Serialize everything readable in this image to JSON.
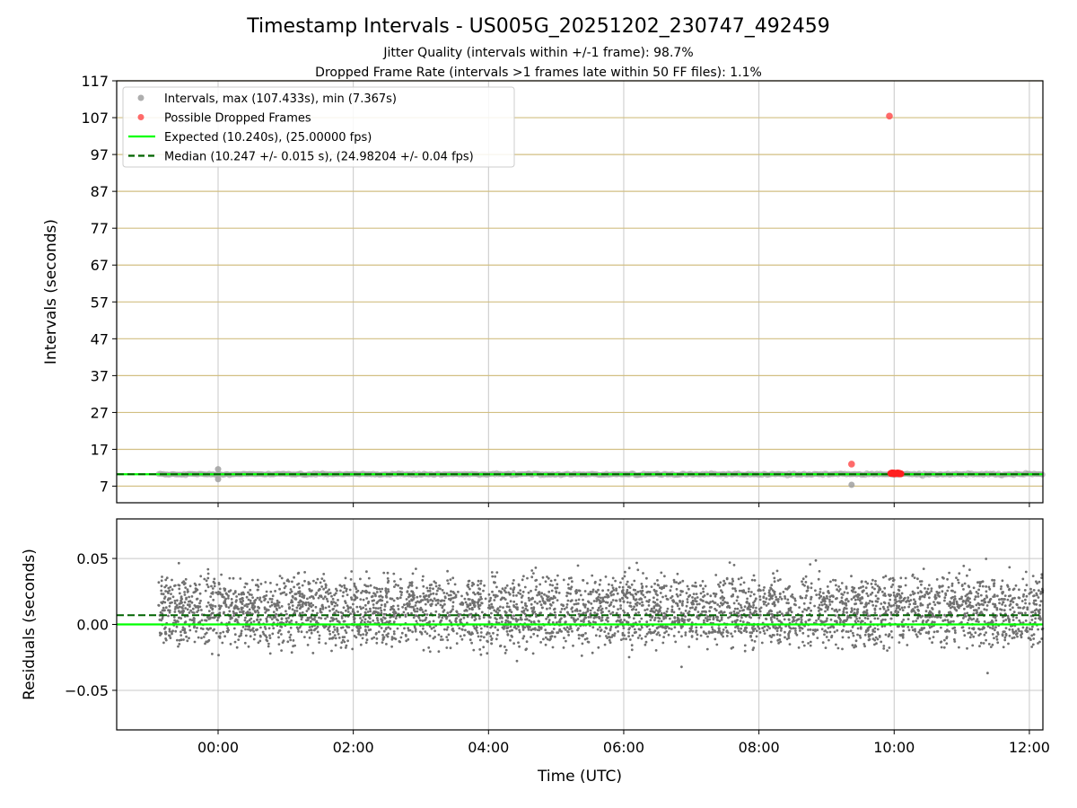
{
  "chart_data": [
    {
      "type": "scatter",
      "panel": "intervals",
      "title": "Timestamp Intervals - US005G_20251202_230747_492459",
      "subtitle_lines": [
        "Jitter Quality (intervals within +/-1 frame): 98.7%",
        "Dropped Frame Rate (intervals >1 frames late within 50 FF files): 1.1%"
      ],
      "xlabel": "Time (UTC)",
      "ylabel": "Intervals (seconds)",
      "xlim": [
        -1.5,
        12.2
      ],
      "ylim": [
        2.5,
        117
      ],
      "yticks": [
        7,
        17,
        27,
        37,
        47,
        57,
        67,
        77,
        87,
        97,
        107,
        117
      ],
      "xtick_hours": [
        0,
        2,
        4,
        6,
        8,
        10,
        12
      ],
      "xtick_labels": [
        "00:00",
        "02:00",
        "04:00",
        "06:00",
        "08:00",
        "10:00",
        "12:00"
      ],
      "gridlines": "vertical grey, horizontal tan at y ticks",
      "expected_interval": 10.24,
      "median_interval": 10.247,
      "series": [
        {
          "name": "Intervals, max (107.433s), min (7.367s)",
          "color": "#a0a0a0",
          "x_range": [
            -0.88,
            12.2
          ],
          "typical_y": 10.24,
          "outliers": [
            {
              "x": 0.0,
              "y": 11.6
            },
            {
              "x": 0.0,
              "y": 8.9
            },
            {
              "x": 9.37,
              "y": 7.367
            }
          ]
        },
        {
          "name": "Possible Dropped Frames",
          "color": "#ff5050",
          "points": [
            {
              "x": 9.93,
              "y": 107.433
            },
            {
              "x": 9.37,
              "y": 13.0
            },
            {
              "x": 9.97,
              "y": 10.5
            },
            {
              "x": 10.0,
              "y": 10.5
            },
            {
              "x": 10.02,
              "y": 10.5
            },
            {
              "x": 10.05,
              "y": 10.5
            },
            {
              "x": 10.08,
              "y": 10.5
            }
          ]
        }
      ],
      "lines": [
        {
          "name": "Expected (10.240s), (25.00000 fps)",
          "color": "#00ff00",
          "style": "solid",
          "y": 10.24
        },
        {
          "name": "Median (10.247 +/- 0.015 s), (24.98204 +/- 0.04 fps)",
          "color": "#006400",
          "style": "dashed",
          "y": 10.247
        }
      ],
      "legend": "top-left"
    },
    {
      "type": "scatter",
      "panel": "residuals",
      "xlabel": "Time (UTC)",
      "ylabel": "Residuals (seconds)",
      "xlim": [
        -1.5,
        12.2
      ],
      "ylim": [
        -0.08,
        0.08
      ],
      "yticks": [
        -0.05,
        0.0,
        0.05
      ],
      "ytick_labels": [
        "−0.05",
        "0.00",
        "0.05"
      ],
      "xtick_hours": [
        0,
        2,
        4,
        6,
        8,
        10,
        12
      ],
      "xtick_labels": [
        "00:00",
        "02:00",
        "04:00",
        "06:00",
        "08:00",
        "10:00",
        "12:00"
      ],
      "series": [
        {
          "name": "Residuals",
          "color": "#707070",
          "x_range": [
            -0.88,
            12.2
          ],
          "count": 4300,
          "clusters": [
            0.0,
            0.02
          ],
          "spread": 0.009,
          "min": -0.044,
          "max": 0.052
        }
      ],
      "lines": [
        {
          "name": "Expected",
          "color": "#00ff00",
          "style": "solid",
          "y": 0.0
        },
        {
          "name": "Median",
          "color": "#006400",
          "style": "dashed",
          "y": 0.007
        }
      ]
    }
  ]
}
